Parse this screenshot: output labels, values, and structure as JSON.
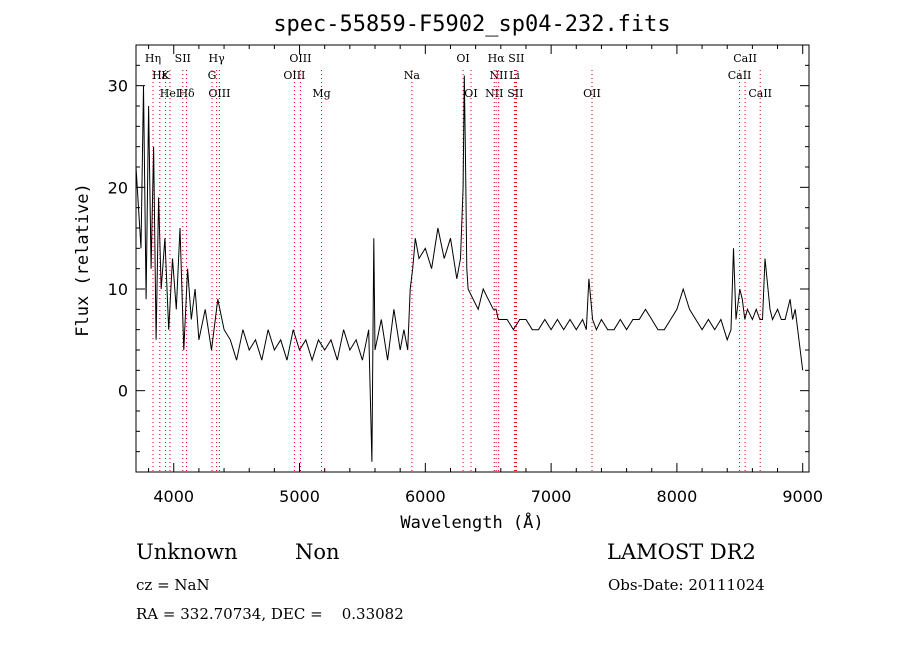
{
  "chart_data": {
    "type": "line",
    "title": "spec-55859-F5902_sp04-232.fits",
    "xlabel": "Wavelength (Å)",
    "ylabel": "Flux (relative)",
    "xlim": [
      3700,
      9050
    ],
    "ylim": [
      -8,
      34
    ],
    "xticks": [
      4000,
      5000,
      6000,
      7000,
      8000,
      9000
    ],
    "yticks": [
      0,
      10,
      20,
      30
    ],
    "line_color": "#000000",
    "marker_color": "#cc0000",
    "series": [
      {
        "x": [
          3700,
          3740,
          3760,
          3780,
          3800,
          3820,
          3840,
          3860,
          3880,
          3900,
          3930,
          3960,
          3990,
          4020,
          4050,
          4080,
          4110,
          4140,
          4170,
          4200,
          4250,
          4300,
          4350,
          4400,
          4450,
          4500,
          4550,
          4600,
          4650,
          4700,
          4750,
          4800,
          4850,
          4900,
          4950,
          5000,
          5050,
          5100,
          5150,
          5200,
          5250,
          5300,
          5350,
          5400,
          5450,
          5500,
          5550,
          5575,
          5590,
          5600,
          5650,
          5700,
          5750,
          5800,
          5830,
          5860,
          5880,
          5900,
          5920,
          5950,
          6000,
          6050,
          6100,
          6150,
          6200,
          6250,
          6280,
          6300,
          6310,
          6320,
          6330,
          6340,
          6380,
          6420,
          6460,
          6500,
          6540,
          6563,
          6580,
          6600,
          6650,
          6700,
          6750,
          6800,
          6850,
          6900,
          6950,
          7000,
          7050,
          7100,
          7150,
          7200,
          7250,
          7280,
          7300,
          7330,
          7360,
          7400,
          7450,
          7500,
          7550,
          7600,
          7650,
          7700,
          7750,
          7800,
          7850,
          7900,
          7950,
          8000,
          8050,
          8100,
          8150,
          8200,
          8250,
          8300,
          8350,
          8400,
          8430,
          8450,
          8470,
          8500,
          8520,
          8540,
          8560,
          8600,
          8630,
          8660,
          8680,
          8700,
          8740,
          8760,
          8800,
          8830,
          8860,
          8900,
          8920,
          8940,
          8960,
          8980,
          9000
        ],
        "y": [
          22,
          14,
          30,
          9,
          28,
          12,
          24,
          5,
          19,
          10,
          15,
          6,
          13,
          8,
          16,
          4,
          12,
          7,
          10,
          5,
          8,
          4,
          9,
          6,
          5,
          3,
          6,
          4,
          5,
          3,
          6,
          4,
          5,
          3,
          6,
          4,
          5,
          3,
          5,
          4,
          5,
          3,
          6,
          4,
          5,
          3,
          6,
          -7,
          15,
          4,
          7,
          3,
          8,
          4,
          6,
          4,
          10,
          12,
          15,
          13,
          14,
          12,
          16,
          13,
          15,
          11,
          13,
          20,
          31,
          22,
          12,
          10,
          9,
          8,
          10,
          9,
          8,
          8,
          7,
          7,
          7,
          6,
          7,
          7,
          6,
          6,
          7,
          6,
          7,
          6,
          7,
          6,
          7,
          6,
          11,
          7,
          6,
          7,
          6,
          6,
          7,
          6,
          7,
          7,
          8,
          7,
          6,
          6,
          7,
          8,
          10,
          8,
          7,
          6,
          7,
          6,
          7,
          5,
          6,
          14,
          7,
          10,
          9,
          7,
          8,
          7,
          8,
          7,
          7,
          13,
          8,
          7,
          8,
          7,
          7,
          9,
          7,
          8,
          6,
          4,
          2
        ]
      }
    ],
    "lines": [
      {
        "name": "Hη",
        "wl": 3835,
        "row": 0
      },
      {
        "name": "Hε",
        "wl": 3889,
        "row": 1
      },
      {
        "name": "K",
        "wl": 3934,
        "row": 1
      },
      {
        "name": "HeI",
        "wl": 3970,
        "row": 2
      },
      {
        "name": "SII",
        "wl": 4072,
        "row": 0
      },
      {
        "name": "Hδ",
        "wl": 4102,
        "row": 2
      },
      {
        "name": "Hγ",
        "wl": 4341,
        "row": 0
      },
      {
        "name": "G",
        "wl": 4304,
        "row": 1
      },
      {
        "name": "OIII",
        "wl": 4363,
        "row": 2
      },
      {
        "name": "OIII",
        "wl": 5007,
        "row": 0
      },
      {
        "name": "OIII",
        "wl": 4959,
        "row": 1
      },
      {
        "name": "Mg",
        "wl": 5175,
        "row": 2
      },
      {
        "name": "Na",
        "wl": 5893,
        "row": 1
      },
      {
        "name": "OI",
        "wl": 6300,
        "row": 0
      },
      {
        "name": "OI",
        "wl": 6363,
        "row": 2
      },
      {
        "name": "Hα",
        "wl": 6563,
        "row": 0
      },
      {
        "name": "SII",
        "wl": 6724,
        "row": 0
      },
      {
        "name": "NII",
        "wl": 6583,
        "row": 1
      },
      {
        "name": "Li",
        "wl": 6708,
        "row": 1
      },
      {
        "name": "NII",
        "wl": 6548,
        "row": 2
      },
      {
        "name": "SII",
        "wl": 6716,
        "row": 2
      },
      {
        "name": "OII",
        "wl": 7325,
        "row": 2
      },
      {
        "name": "CaII",
        "wl": 8542,
        "row": 0
      },
      {
        "name": "CaII",
        "wl": 8498,
        "row": 1
      },
      {
        "name": "CaII",
        "wl": 8662,
        "row": 2
      }
    ]
  },
  "info": {
    "class": "Unknown",
    "subclass": "Non",
    "survey": "LAMOST DR2",
    "cz": "cz = NaN",
    "obs_date": "Obs-Date: 20111024",
    "coords": "RA = 332.70734, DEC =    0.33082"
  }
}
